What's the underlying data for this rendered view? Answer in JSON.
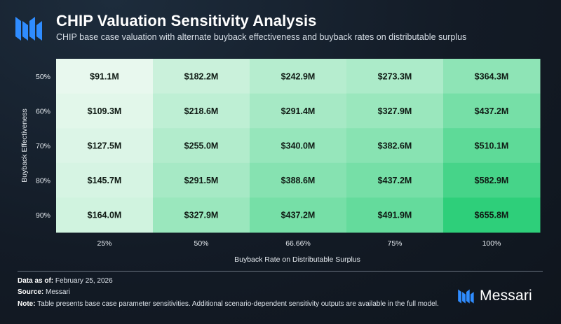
{
  "header": {
    "title": "CHIP Valuation Sensitivity Analysis",
    "subtitle": "CHIP base case valuation with alternate buyback effectiveness and buyback rates on distributable surplus"
  },
  "chart_data": {
    "type": "heatmap",
    "x_categories": [
      "25%",
      "50%",
      "66.66%",
      "75%",
      "100%"
    ],
    "y_categories": [
      "50%",
      "60%",
      "70%",
      "80%",
      "90%"
    ],
    "xlabel": "Buyback Rate on Distributable Surplus",
    "ylabel": "Buyback Effectiveness",
    "values": [
      [
        91.1,
        182.2,
        242.9,
        273.3,
        364.3
      ],
      [
        109.3,
        218.6,
        291.4,
        327.9,
        437.2
      ],
      [
        127.5,
        255.0,
        340.0,
        382.6,
        510.1
      ],
      [
        145.7,
        291.5,
        388.6,
        437.2,
        582.9
      ],
      [
        164.0,
        327.9,
        437.2,
        491.9,
        655.8
      ]
    ],
    "labels": [
      [
        "$91.1M",
        "$182.2M",
        "$242.9M",
        "$273.3M",
        "$364.3M"
      ],
      [
        "$109.3M",
        "$218.6M",
        "$291.4M",
        "$327.9M",
        "$437.2M"
      ],
      [
        "$127.5M",
        "$255.0M",
        "$340.0M",
        "$382.6M",
        "$510.1M"
      ],
      [
        "$145.7M",
        "$291.5M",
        "$388.6M",
        "$437.2M",
        "$582.9M"
      ],
      [
        "$164.0M",
        "$327.9M",
        "$437.2M",
        "$491.9M",
        "$655.8M"
      ]
    ],
    "color_low": "#e8f8ee",
    "color_high": "#2ecf7a"
  },
  "footer": {
    "date_label": "Data as of:",
    "date_value": "February 25, 2026",
    "source_label": "Source:",
    "source_value": "Messari",
    "note_label": "Note:",
    "note_value": "Table presents base case parameter sensitivities. Additional scenario-dependent sensitivity outputs are available in the full model."
  },
  "brand": {
    "name": "Messari",
    "color": "#2f8cff"
  }
}
